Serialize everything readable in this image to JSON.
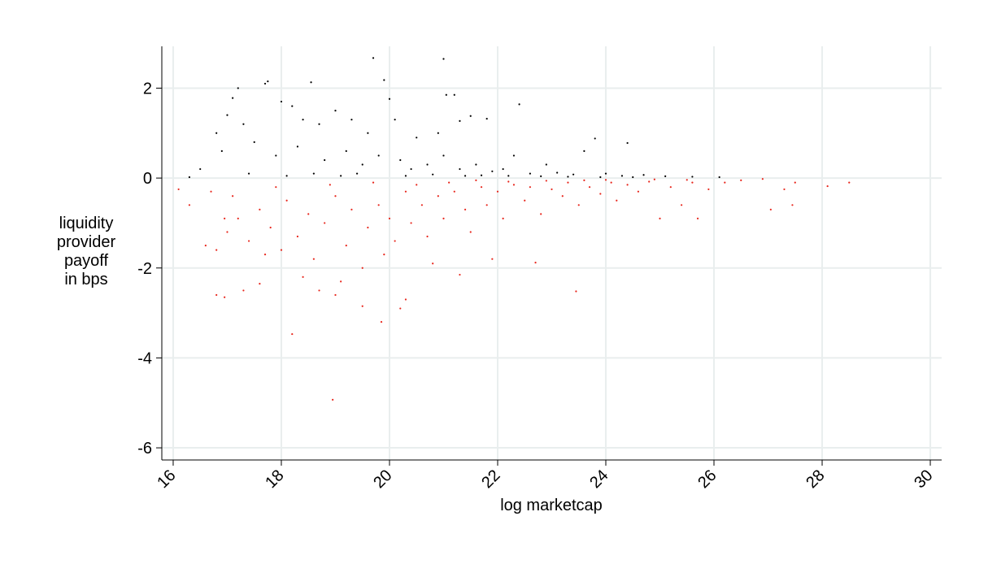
{
  "chart_data": {
    "type": "scatter",
    "xlabel": "log marketcap",
    "ylabel": [
      "liquidity",
      "provider",
      "payoff",
      "in bps"
    ],
    "xlim": [
      15.79,
      30.21
    ],
    "xticks": [
      16,
      18,
      20,
      22,
      24,
      26,
      28,
      30
    ],
    "ylim": [
      -6.27,
      2.93
    ],
    "yticks": [
      -6,
      -4,
      -2,
      0,
      2
    ],
    "grid": true,
    "series": [
      {
        "color": "#000000",
        "x": [
          19.7,
          21.0,
          17.7,
          17.75,
          18.55,
          19.9,
          17.2,
          22.4,
          23.8,
          24.4,
          21.05,
          21.2,
          20.0,
          21.5,
          21.3,
          21.8,
          17.1,
          17.0,
          17.3,
          18.0,
          18.2,
          18.4,
          18.7,
          19.0,
          19.3,
          19.6,
          20.1,
          20.5,
          20.9,
          16.8,
          16.9,
          17.5,
          17.9,
          18.3,
          18.8,
          19.2,
          19.5,
          19.8,
          20.2,
          20.4,
          20.7,
          21.0,
          21.3,
          21.6,
          21.9,
          22.1,
          22.3,
          22.6,
          22.9,
          23.1,
          23.4,
          23.6,
          24.0,
          24.3,
          24.7,
          25.1,
          25.6,
          26.1,
          16.3,
          16.5,
          17.4,
          18.1,
          18.6,
          19.1,
          19.4,
          20.3,
          20.8,
          21.4,
          21.7,
          22.2,
          22.8,
          23.3,
          23.9,
          24.5
        ],
        "values": [
          2.67,
          2.65,
          2.1,
          2.15,
          2.13,
          2.18,
          2.0,
          1.64,
          0.88,
          0.78,
          1.85,
          1.85,
          1.76,
          1.38,
          1.27,
          1.32,
          1.78,
          1.4,
          1.2,
          1.7,
          1.6,
          1.3,
          1.2,
          1.5,
          1.3,
          1.0,
          1.3,
          0.9,
          1.0,
          1.0,
          0.6,
          0.8,
          0.5,
          0.7,
          0.4,
          0.6,
          0.3,
          0.5,
          0.4,
          0.2,
          0.3,
          0.5,
          0.2,
          0.3,
          0.15,
          0.2,
          0.5,
          0.1,
          0.3,
          0.12,
          0.08,
          0.6,
          0.1,
          0.05,
          0.07,
          0.04,
          0.03,
          0.02,
          0.02,
          0.2,
          0.1,
          0.05,
          0.1,
          0.05,
          0.1,
          0.05,
          0.08,
          0.05,
          0.06,
          0.05,
          0.04,
          0.03,
          0.02,
          0.02
        ]
      },
      {
        "color": "#e8261c",
        "x": [
          18.95,
          18.2,
          19.85,
          16.8,
          16.95,
          17.3,
          17.6,
          18.7,
          19.0,
          19.5,
          20.2,
          20.3,
          23.45,
          22.7,
          21.9,
          21.3,
          16.3,
          16.1,
          16.6,
          16.8,
          17.0,
          17.2,
          17.4,
          17.6,
          17.8,
          18.0,
          18.1,
          18.3,
          18.5,
          18.6,
          18.8,
          19.0,
          19.2,
          19.3,
          19.5,
          19.6,
          19.8,
          19.9,
          20.0,
          20.1,
          20.3,
          20.4,
          20.6,
          20.7,
          20.9,
          21.0,
          21.2,
          21.4,
          21.5,
          21.7,
          21.8,
          22.0,
          22.1,
          22.3,
          22.5,
          22.6,
          22.8,
          23.0,
          23.2,
          23.3,
          23.5,
          23.7,
          23.9,
          24.1,
          24.2,
          24.4,
          24.6,
          24.8,
          25.0,
          25.2,
          25.4,
          25.6,
          25.7,
          25.9,
          26.2,
          26.5,
          26.9,
          27.05,
          27.3,
          27.5,
          27.45,
          28.1,
          28.5,
          20.5,
          21.1,
          21.6,
          22.2,
          22.9,
          23.6,
          24.0,
          24.9,
          25.5,
          17.9,
          18.9,
          19.7,
          16.7,
          17.1,
          18.4,
          19.1,
          20.8,
          17.7,
          16.95
        ],
        "values": [
          -4.93,
          -3.47,
          -3.2,
          -2.6,
          -2.65,
          -2.5,
          -2.35,
          -2.5,
          -2.6,
          -2.85,
          -2.9,
          -2.7,
          -2.52,
          -1.88,
          -1.8,
          -2.15,
          -0.6,
          -0.25,
          -1.5,
          -1.6,
          -1.2,
          -0.9,
          -1.4,
          -0.7,
          -1.1,
          -1.6,
          -0.5,
          -1.3,
          -0.8,
          -1.8,
          -1.0,
          -0.4,
          -1.5,
          -0.7,
          -2.0,
          -1.1,
          -0.6,
          -1.7,
          -0.9,
          -1.4,
          -0.3,
          -1.0,
          -0.6,
          -1.3,
          -0.4,
          -0.9,
          -0.3,
          -0.7,
          -1.2,
          -0.2,
          -0.6,
          -0.3,
          -0.9,
          -0.15,
          -0.5,
          -0.2,
          -0.8,
          -0.25,
          -0.4,
          -0.1,
          -0.6,
          -0.2,
          -0.35,
          -0.1,
          -0.5,
          -0.15,
          -0.3,
          -0.08,
          -0.9,
          -0.2,
          -0.6,
          -0.1,
          -0.9,
          -0.25,
          -0.1,
          -0.05,
          -0.02,
          -0.7,
          -0.25,
          -0.1,
          -0.6,
          -0.18,
          -0.1,
          -0.15,
          -0.1,
          -0.05,
          -0.08,
          -0.06,
          -0.05,
          -0.04,
          -0.03,
          -0.04,
          -0.2,
          -0.15,
          -0.1,
          -0.3,
          -0.4,
          -2.2,
          -2.3,
          -1.9,
          -1.7,
          -0.9
        ]
      }
    ]
  }
}
